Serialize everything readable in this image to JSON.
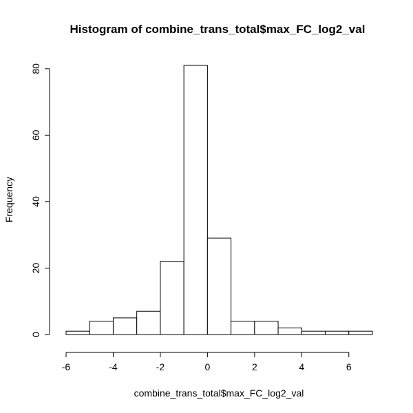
{
  "chart_data": {
    "type": "bar",
    "title": "Histogram of combine_trans_total$max_FC_log2_val",
    "xlabel": "combine_trans_total$max_FC_log2_val",
    "ylabel": "Frequency",
    "bins": [
      {
        "x0": -6,
        "x1": -5,
        "count": 1
      },
      {
        "x0": -5,
        "x1": -4,
        "count": 4
      },
      {
        "x0": -4,
        "x1": -3,
        "count": 5
      },
      {
        "x0": -3,
        "x1": -2,
        "count": 7
      },
      {
        "x0": -2,
        "x1": -1,
        "count": 22
      },
      {
        "x0": -1,
        "x1": 0,
        "count": 81
      },
      {
        "x0": 0,
        "x1": 1,
        "count": 29
      },
      {
        "x0": 1,
        "x1": 2,
        "count": 4
      },
      {
        "x0": 2,
        "x1": 3,
        "count": 4
      },
      {
        "x0": 3,
        "x1": 4,
        "count": 2
      },
      {
        "x0": 4,
        "x1": 5,
        "count": 1
      },
      {
        "x0": 5,
        "x1": 6,
        "count": 1
      },
      {
        "x0": 6,
        "x1": 7,
        "count": 1
      }
    ],
    "xticks": [
      -6,
      -4,
      -2,
      0,
      2,
      4,
      6
    ],
    "yticks": [
      0,
      20,
      40,
      60,
      80
    ],
    "xlim": [
      -6,
      7
    ],
    "ylim": [
      0,
      81
    ],
    "grid": false,
    "legend": "none"
  }
}
